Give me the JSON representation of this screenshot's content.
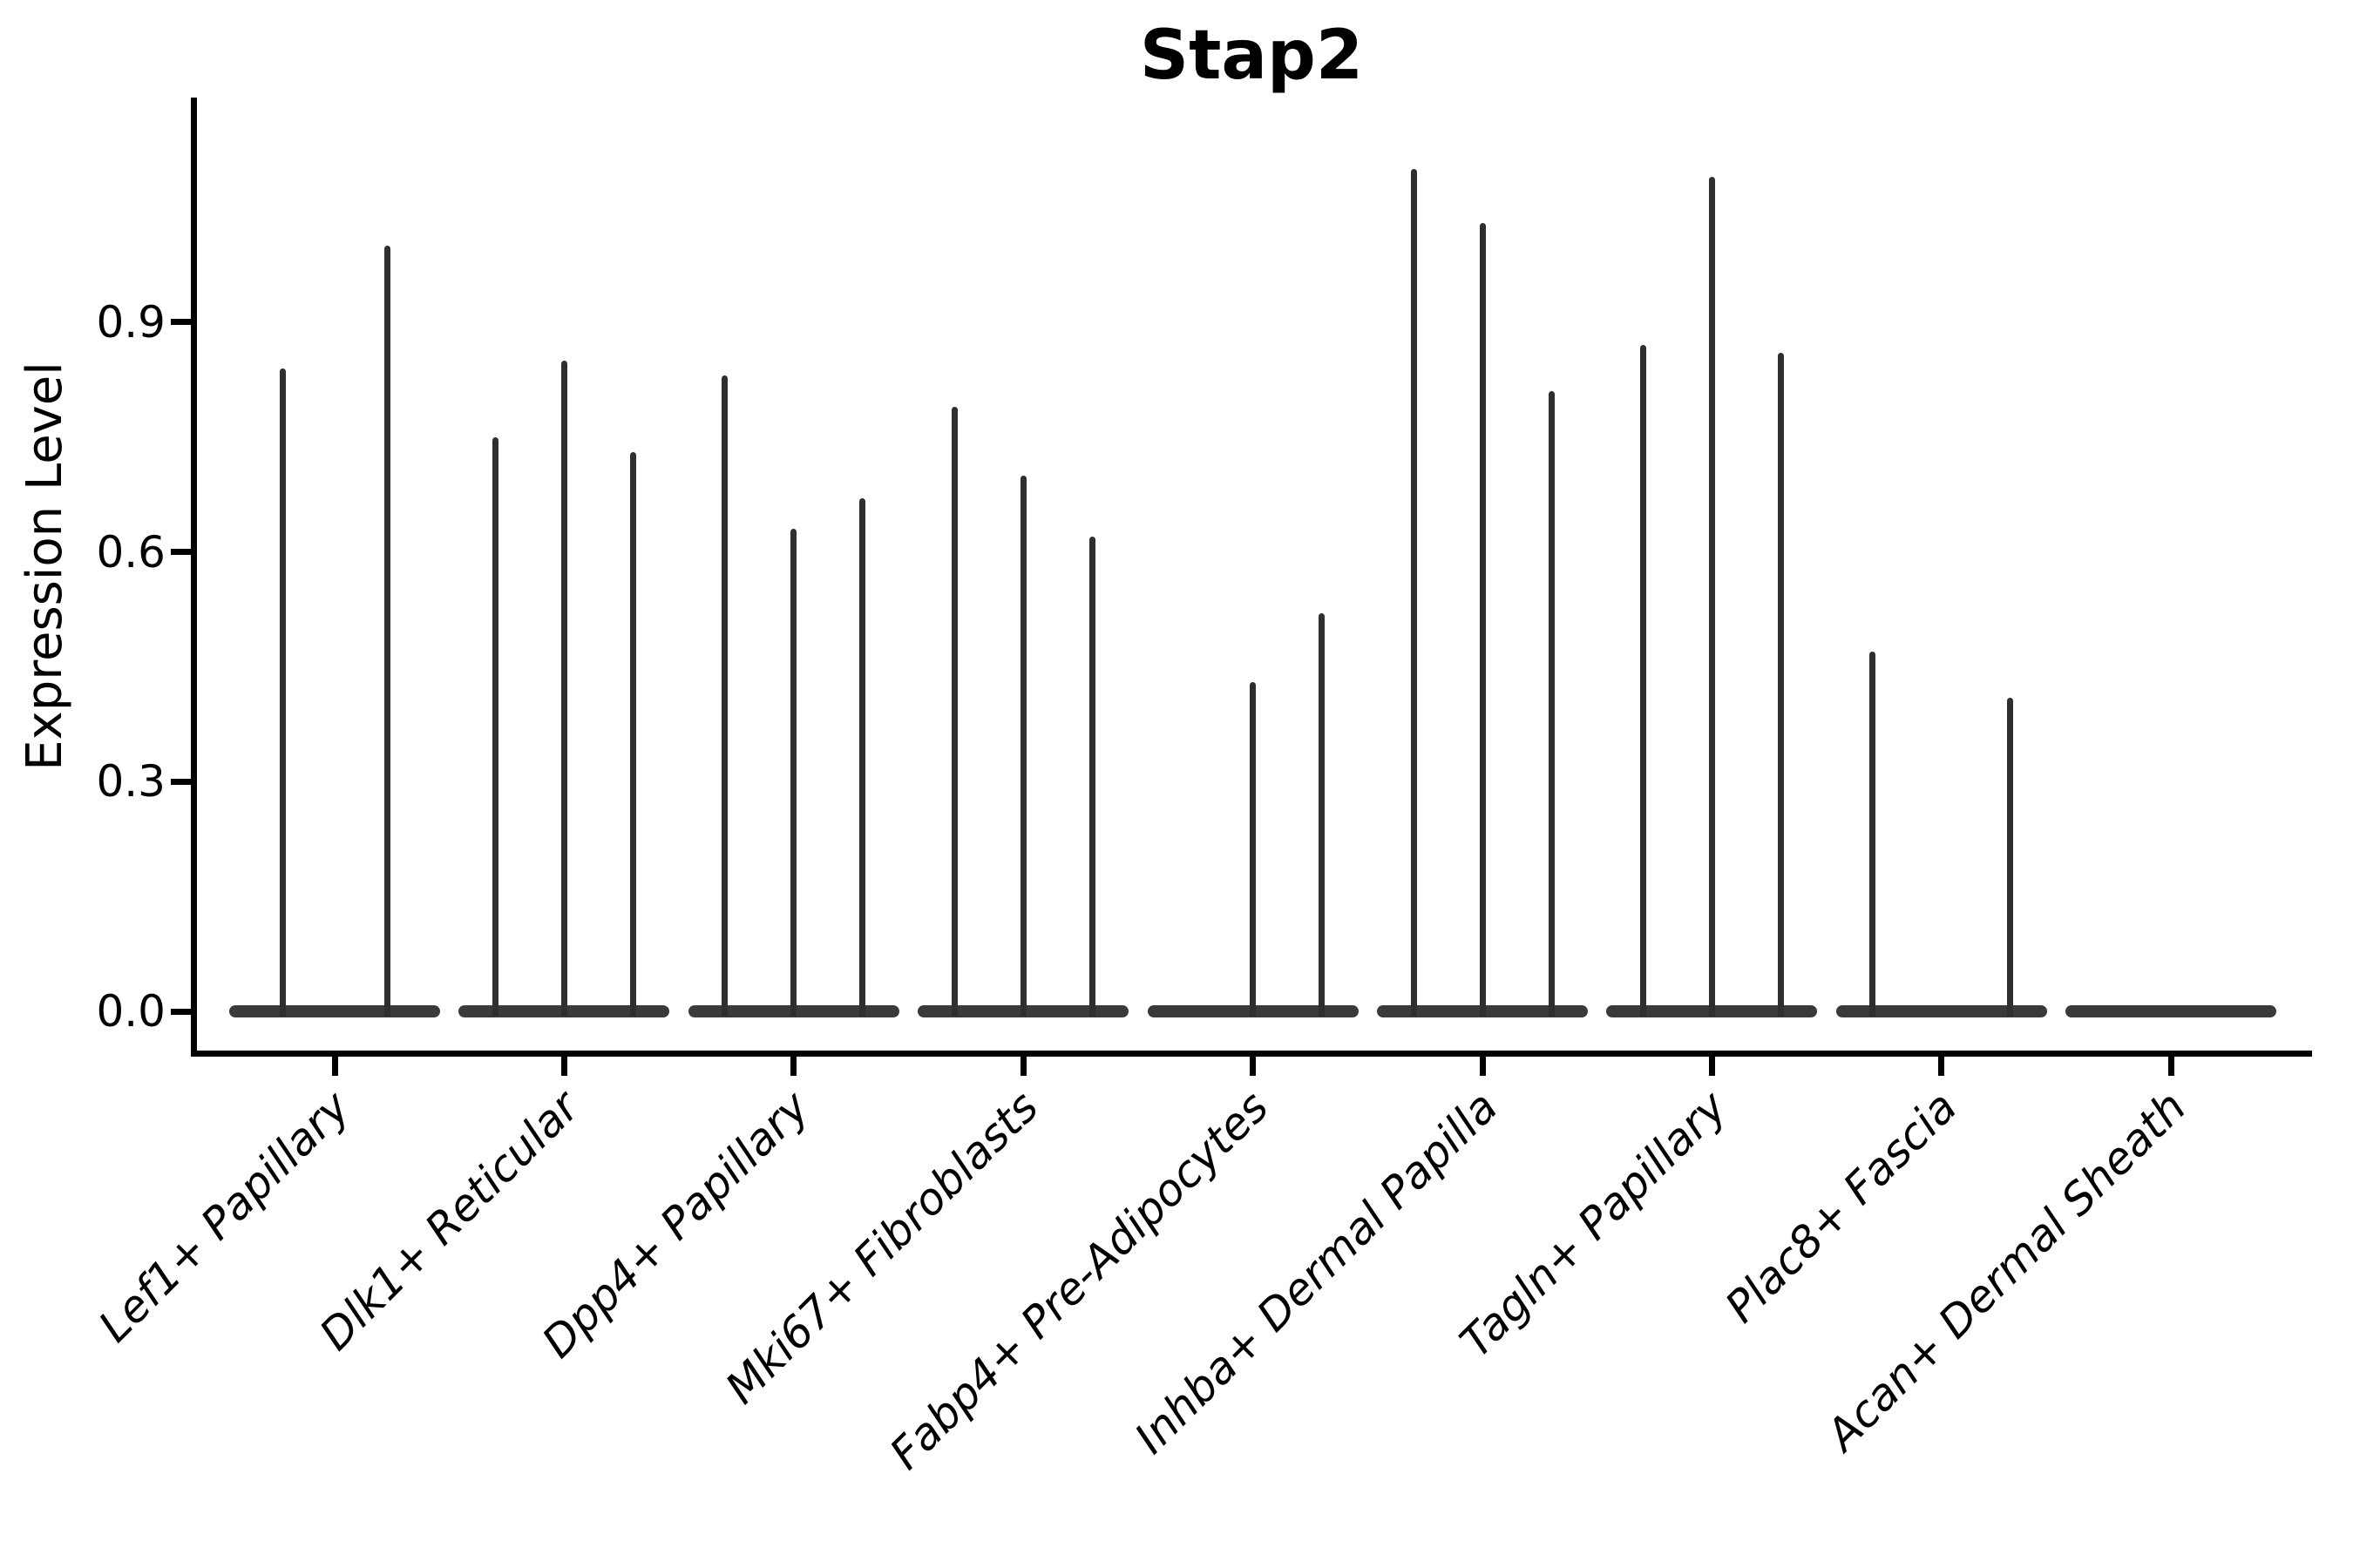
{
  "chart_data": {
    "type": "violin",
    "title": "Stap2",
    "ylabel": "Expression Level",
    "xlabel": "",
    "grid": false,
    "legend": "none",
    "yticks": [
      "0.0",
      "0.3",
      "0.6",
      "0.9"
    ],
    "ytick_values": [
      0.0,
      0.3,
      0.6,
      0.9
    ],
    "ylim": [
      -0.06,
      1.19
    ],
    "violin_color": "#2f2f2f",
    "base_color": "#3a3a3a",
    "axis_color": "#000000",
    "categories": [
      {
        "label": "Lef1+ Papillary",
        "spikes": [
          {
            "dx": -60,
            "value": 0.84
          },
          {
            "dx": 60,
            "value": 1.0
          }
        ]
      },
      {
        "label": "Dlk1+ Reticular",
        "spikes": [
          {
            "dx": -79,
            "value": 0.75
          },
          {
            "dx": 0,
            "value": 0.85
          },
          {
            "dx": 79,
            "value": 0.73
          }
        ]
      },
      {
        "label": "Dpp4+ Papillary",
        "spikes": [
          {
            "dx": -79,
            "value": 0.83
          },
          {
            "dx": 0,
            "value": 0.63
          },
          {
            "dx": 79,
            "value": 0.67
          }
        ]
      },
      {
        "label": "Mki67+ Fibroblasts",
        "spikes": [
          {
            "dx": -79,
            "value": 0.79
          },
          {
            "dx": 0,
            "value": 0.7
          },
          {
            "dx": 79,
            "value": 0.62
          }
        ]
      },
      {
        "label": "Fabp4+ Pre-Adipocytes",
        "spikes": [
          {
            "dx": 0,
            "value": 0.43
          },
          {
            "dx": 79,
            "value": 0.52
          }
        ]
      },
      {
        "label": "Inhba+ Dermal Papilla",
        "spikes": [
          {
            "dx": -79,
            "value": 1.1
          },
          {
            "dx": 0,
            "value": 1.03
          },
          {
            "dx": 79,
            "value": 0.81
          }
        ]
      },
      {
        "label": "Tagln+ Papillary",
        "spikes": [
          {
            "dx": -79,
            "value": 0.87
          },
          {
            "dx": 0,
            "value": 1.09
          },
          {
            "dx": 79,
            "value": 0.86
          }
        ]
      },
      {
        "label": "Plac8+ Fascia",
        "spikes": [
          {
            "dx": -79,
            "value": 0.47
          },
          {
            "dx": 79,
            "value": 0.41
          }
        ]
      },
      {
        "label": "Acan+ Dermal Sheath",
        "spikes": []
      }
    ]
  }
}
